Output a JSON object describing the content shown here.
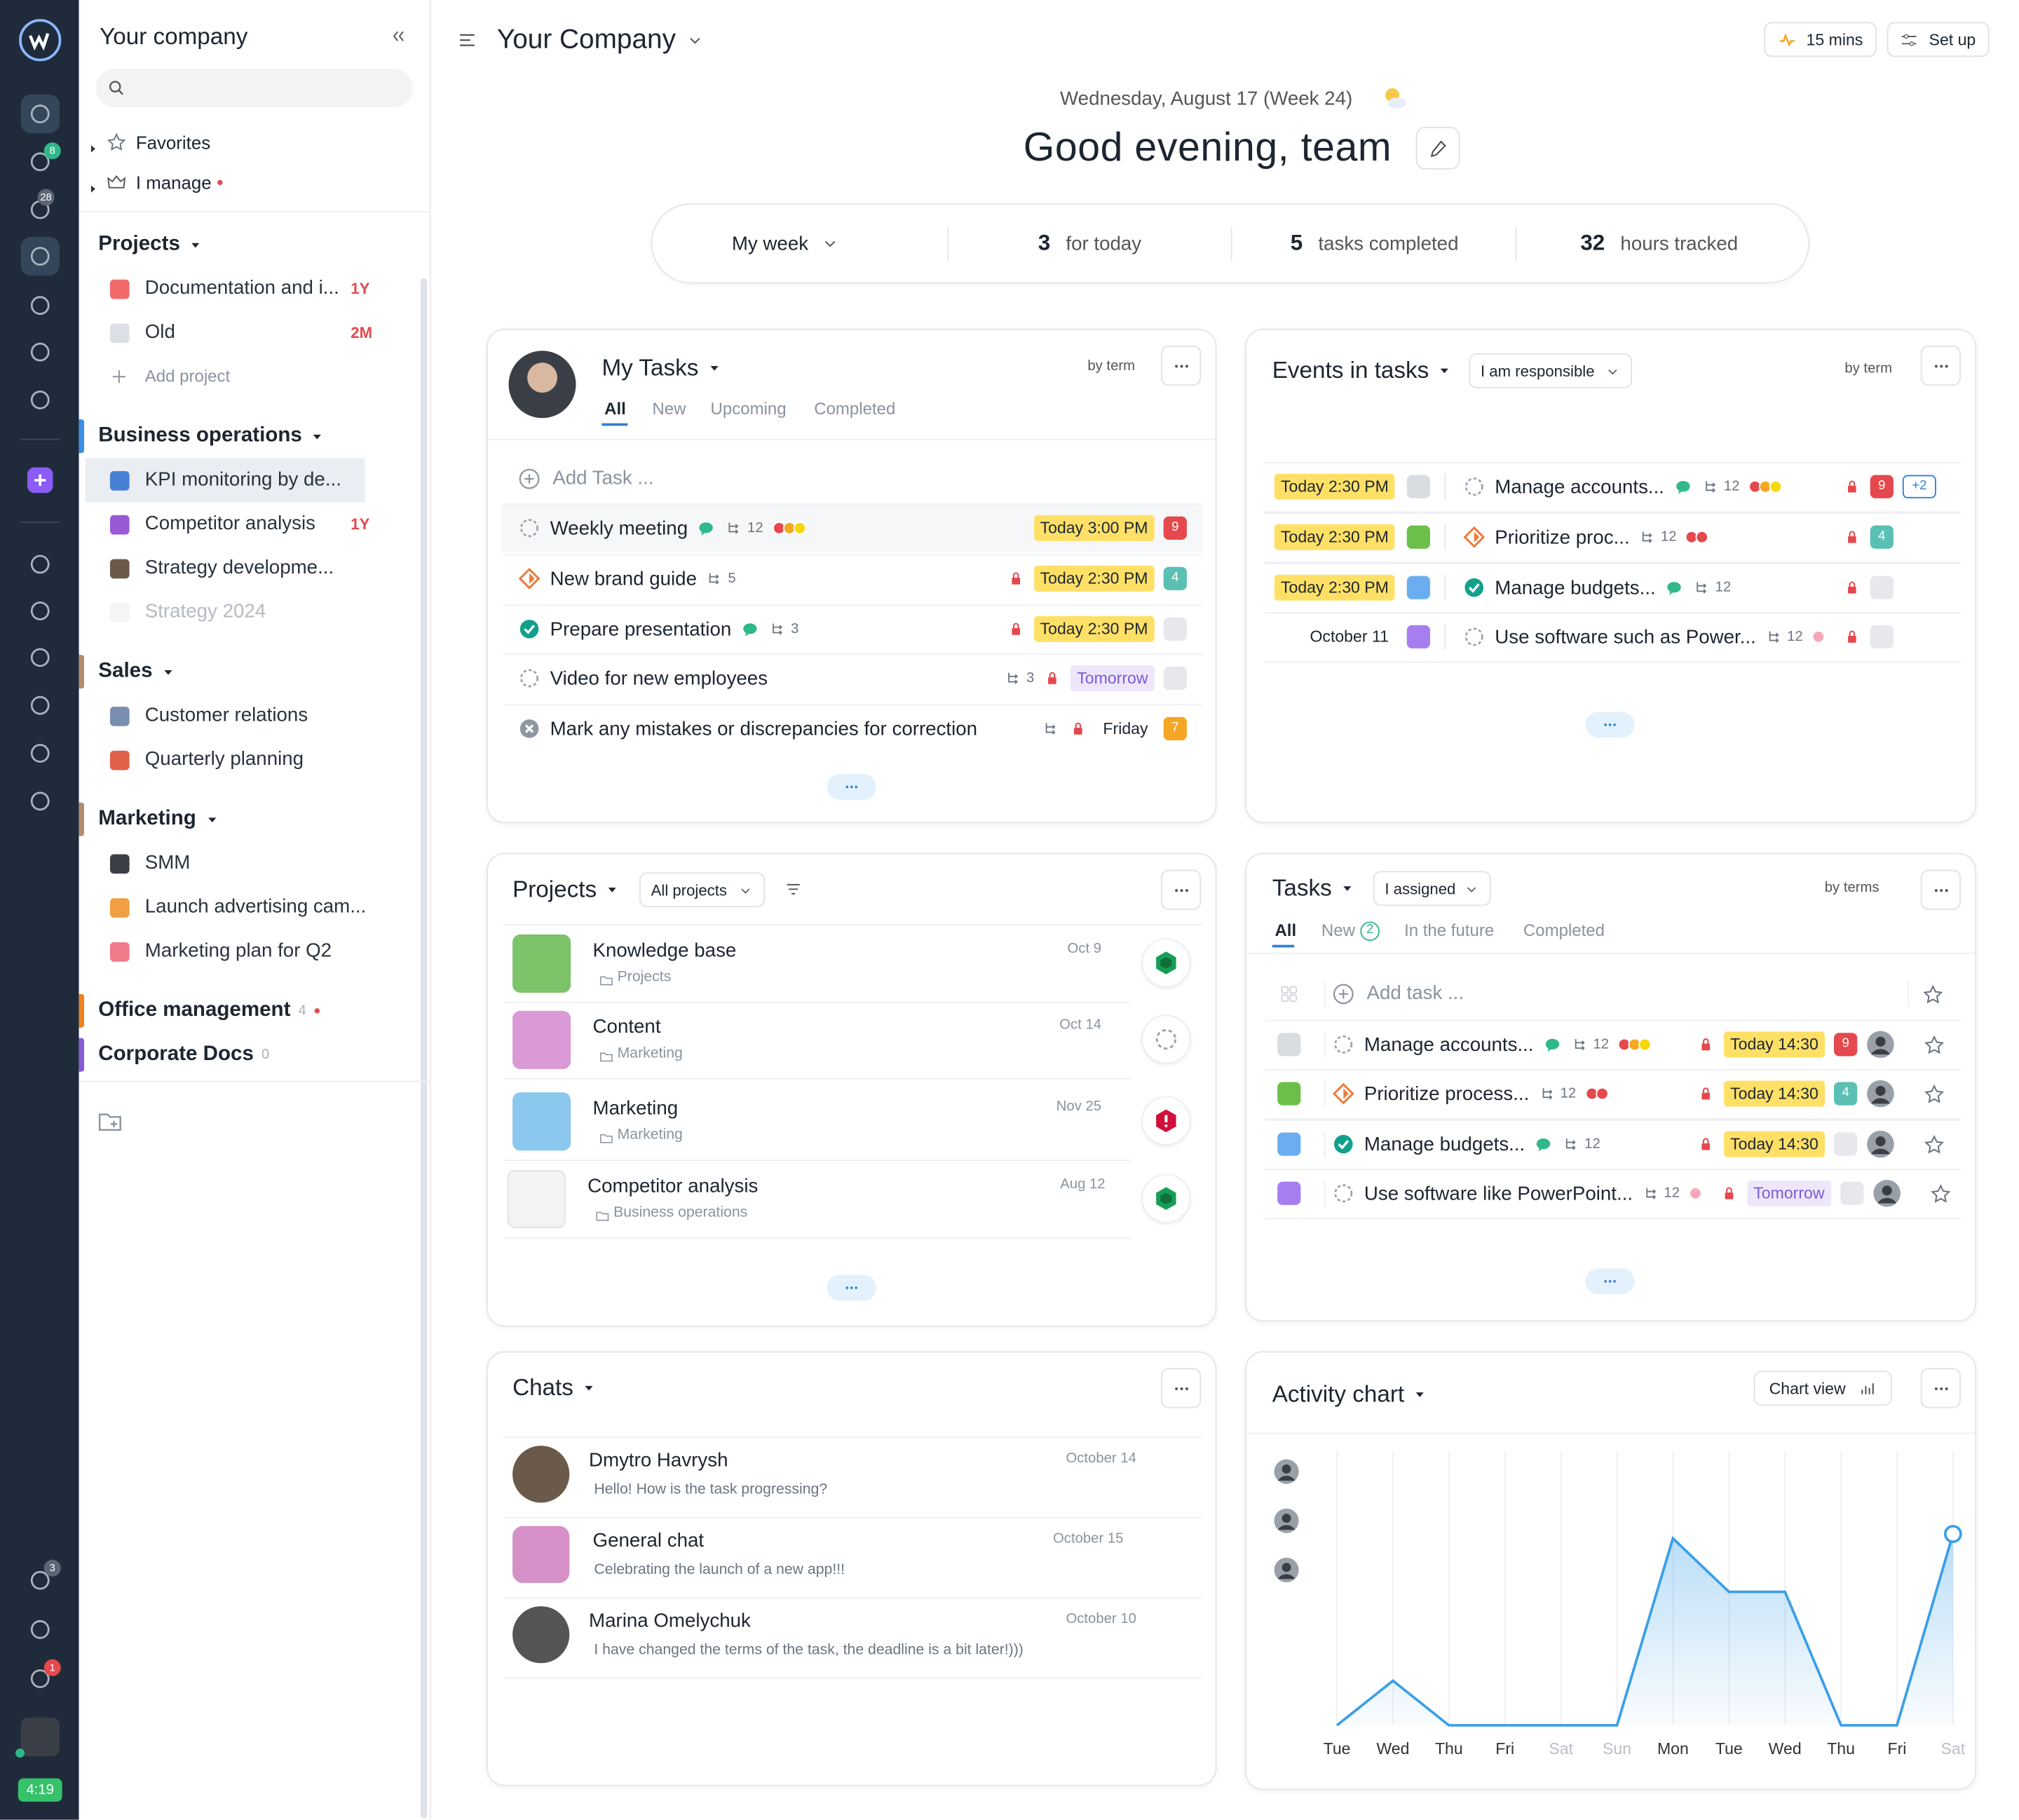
{
  "sidebar": {
    "company": "Your company",
    "favorites": "Favorites",
    "i_manage": "I manage",
    "rail_badges": {
      "tasks": 8,
      "notifications": 28,
      "timer": 3,
      "help": 1
    },
    "timer": "4:19",
    "groups": [
      {
        "name": "Projects",
        "items": [
          {
            "name": "Documentation and i...",
            "tag": "1Y",
            "icon": "#f06a6a"
          },
          {
            "name": "Old",
            "tag": "2M",
            "icon": "#dcdfe3"
          }
        ],
        "add": "Add project"
      },
      {
        "name": "Business operations",
        "color": "#3a8ee6",
        "items": [
          {
            "name": "KPI monitoring by de...",
            "icon": "#4a7fd6",
            "active": true
          },
          {
            "name": "Competitor analysis",
            "tag": "1Y",
            "icon": "#9a5ad6"
          },
          {
            "name": "Strategy developme...",
            "icon": "#6b5a4a"
          },
          {
            "name": "Strategy 2024",
            "icon": "#eceef0",
            "faded": true
          }
        ]
      },
      {
        "name": "Sales",
        "color": "#b38b6d",
        "items": [
          {
            "name": "Customer relations",
            "icon": "#7a8fb0"
          },
          {
            "name": "Quarterly planning",
            "icon": "#e0604a"
          }
        ]
      },
      {
        "name": "Marketing",
        "color": "#b38b6d",
        "items": [
          {
            "name": "SMM",
            "icon": "#3a3f47"
          },
          {
            "name": "Launch advertising cam...",
            "icon": "#f0a040"
          },
          {
            "name": "Marketing plan for Q2",
            "icon": "#f07a8a"
          }
        ]
      },
      {
        "name": "Office management",
        "color": "#f0801f",
        "count": 4,
        "dot": true
      },
      {
        "name": "Corporate Docs",
        "color": "#8a5ad6",
        "count": 0
      }
    ]
  },
  "header": {
    "company": "Your Company",
    "timer_button": "15 mins",
    "setup_button": "Set up",
    "date": "Wednesday, August 17 (Week 24)",
    "greeting": "Good evening, team"
  },
  "stats": {
    "period": "My week",
    "items": [
      {
        "value": 3,
        "label": "for today"
      },
      {
        "value": 5,
        "label": "tasks completed"
      },
      {
        "value": 32,
        "label": "hours tracked"
      }
    ]
  },
  "my_tasks": {
    "title": "My Tasks",
    "sort": "by term",
    "tabs": [
      "All",
      "New",
      "Upcoming",
      "Completed"
    ],
    "add": "Add Task ...",
    "tasks": [
      {
        "name": "Weekly meeting",
        "status": "open",
        "chat": true,
        "subtasks": 12,
        "subtasks_pos": "left",
        "dots": [
          "#e5484d",
          "#f5a623",
          "#f5d90a"
        ],
        "due": "Today 3:00 PM",
        "due_style": "today",
        "badge": 9,
        "badge_color": "#e5484d"
      },
      {
        "name": "New brand guide",
        "status": "progress",
        "subtasks": 5,
        "subtasks_pos": "left",
        "lock": true,
        "due": "Today 2:30 PM",
        "due_style": "today",
        "badge": 4,
        "badge_color": "#5bbfb3"
      },
      {
        "name": "Prepare presentation",
        "status": "done",
        "chat": true,
        "subtasks": 3,
        "subtasks_pos": "left",
        "lock": true,
        "due": "Today 2:30 PM",
        "due_style": "today",
        "badge_color": "#e6e8eb"
      },
      {
        "name": "Video for new employees",
        "status": "open",
        "subtasks": 3,
        "subtasks_pos": "right",
        "lock": true,
        "due": "Tomorrow",
        "due_style": "later",
        "badge_color": "#e6e8eb"
      },
      {
        "name": "Mark any mistakes or discrepancies for correction",
        "status": "cancelled",
        "subtasks_pos": "right",
        "lock": true,
        "due": "Friday",
        "due_style": "plain",
        "badge": 7,
        "badge_color": "#f5a623"
      }
    ]
  },
  "events": {
    "title": "Events in tasks",
    "filter": "I am responsible",
    "sort": "by term",
    "items": [
      {
        "when": "Today 2:30 PM",
        "when_style": "today",
        "project_color": "#d9dde2",
        "name": "Manage accounts...",
        "status": "open",
        "chat": true,
        "subtasks": 12,
        "dots": [
          "#e5484d",
          "#f5a623",
          "#f5d90a"
        ],
        "lock": true,
        "badge": 9,
        "badge_color": "#e5484d",
        "extra": "+2"
      },
      {
        "when": "Today 2:30 PM",
        "when_style": "today",
        "project_color": "#6cbf4a",
        "name": "Prioritize proc...",
        "status": "progress",
        "subtasks": 12,
        "dots": [
          "#e5484d",
          "#e5484d"
        ],
        "lock": true,
        "badge": 4,
        "badge_color": "#5bbfb3"
      },
      {
        "when": "Today 2:30 PM",
        "when_style": "today",
        "project_color": "#6aaef0",
        "name": "Manage budgets...",
        "status": "done",
        "chat": true,
        "subtasks": 12,
        "lock": true,
        "badge_color": "#e6e8eb"
      },
      {
        "when": "October 11",
        "when_style": "plain",
        "project_color": "#a77ef0",
        "name": "Use software such as Power...",
        "status": "open",
        "subtasks": 12,
        "dots": [
          "#f7a8b8"
        ],
        "lock": true,
        "badge_color": "#e6e8eb"
      }
    ]
  },
  "projects": {
    "title": "Projects",
    "filter": "All projects",
    "items": [
      {
        "name": "Knowledge base",
        "folder": "Projects",
        "date": "Oct 9",
        "icon_color": "#7cc36a",
        "state": "ok"
      },
      {
        "name": "Content",
        "folder": "Marketing",
        "date": "Oct 14",
        "icon_color": "#d99ad6",
        "state": "none"
      },
      {
        "name": "Marketing",
        "folder": "Marketing",
        "date": "Nov 25",
        "icon_color": "#8cc8ee",
        "state": "alert"
      },
      {
        "name": "Competitor analysis",
        "folder": "Business operations",
        "date": "Aug 12",
        "icon_color": "#f3f3f3",
        "state": "ok"
      }
    ]
  },
  "tasks": {
    "title": "Tasks",
    "filter": "I assigned",
    "sort": "by terms",
    "tabs": [
      "All",
      "New",
      "In the future",
      "Completed"
    ],
    "new_count": 2,
    "add": "Add task ...",
    "items": [
      {
        "name": "Manage accounts...",
        "project_color": "#d9dde2",
        "status": "open",
        "chat": true,
        "subtasks": 12,
        "dots": [
          "#e5484d",
          "#f5a623",
          "#f5d90a"
        ],
        "lock": true,
        "due": "Today 14:30",
        "due_style": "today",
        "badge": 9,
        "badge_color": "#e5484d"
      },
      {
        "name": "Prioritize process...",
        "project_color": "#6cbf4a",
        "status": "progress",
        "subtasks": 12,
        "dots": [
          "#e5484d",
          "#e5484d"
        ],
        "lock": true,
        "due": "Today 14:30",
        "due_style": "today",
        "badge": 4,
        "badge_color": "#5bbfb3"
      },
      {
        "name": "Manage budgets...",
        "project_color": "#6aaef0",
        "status": "done",
        "chat": true,
        "subtasks": 12,
        "lock": true,
        "due": "Today 14:30",
        "due_style": "today",
        "badge_color": "#e6e8eb"
      },
      {
        "name": "Use software like PowerPoint...",
        "project_color": "#a77ef0",
        "status": "open",
        "subtasks": 12,
        "dots": [
          "#f7a8b8"
        ],
        "lock": true,
        "due": "Tomorrow",
        "due_style": "later",
        "badge_color": "#e6e8eb"
      }
    ]
  },
  "chats": {
    "title": "Chats",
    "items": [
      {
        "name": "Dmytro Havrysh",
        "date": "October 14",
        "message": "Hello! How is the task progressing?",
        "avatar": "#6b5a4a"
      },
      {
        "name": "General chat",
        "date": "October 15",
        "message": "Celebrating the launch of a new app!!!",
        "avatar": "#d690c8"
      },
      {
        "name": "Marina Omelychuk",
        "date": "October 10",
        "message": "I have changed the terms of the task, the deadline is a bit later!)))",
        "avatar": "#555555"
      }
    ]
  },
  "activity": {
    "chart_view": "Chart view"
  },
  "chart_data": {
    "type": "line",
    "title": "Activity chart",
    "categories": [
      "Tue",
      "Wed",
      "Thu",
      "Fri",
      "Sat",
      "Sun",
      "Mon",
      "Tue",
      "Wed",
      "Thu",
      "Fri",
      "Sat"
    ],
    "weekend": [
      false,
      false,
      false,
      false,
      true,
      true,
      false,
      false,
      false,
      false,
      false,
      true
    ],
    "values": [
      0,
      1,
      0,
      0,
      0,
      0,
      4.2,
      3,
      3,
      0,
      0,
      4.3
    ],
    "ylim": [
      0,
      4.8
    ],
    "color": "#3a9fe8",
    "grid": true
  }
}
